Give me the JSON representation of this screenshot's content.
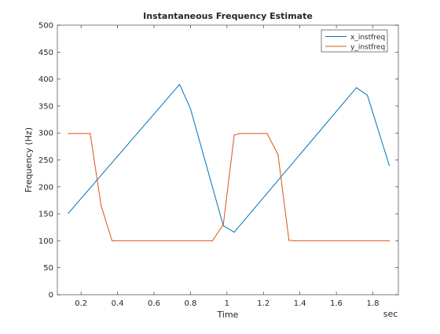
{
  "chart_data": {
    "type": "line",
    "title": "Instantaneous Frequency Estimate",
    "xlabel": "Time",
    "ylabel": "Frequency (Hz)",
    "x_unit_label": "sec",
    "xlim": [
      0.07,
      1.94
    ],
    "ylim": [
      0,
      500
    ],
    "x_ticks": [
      0.2,
      0.4,
      0.6,
      0.8,
      1,
      1.2,
      1.4,
      1.6,
      1.8
    ],
    "x_tick_labels": [
      "0.2",
      "0.4",
      "0.6",
      "0.8",
      "1",
      "1.2",
      "1.4",
      "1.6",
      "1.8"
    ],
    "y_ticks": [
      0,
      50,
      100,
      150,
      200,
      250,
      300,
      350,
      400,
      450,
      500
    ],
    "y_tick_labels": [
      "0",
      "50",
      "100",
      "150",
      "200",
      "250",
      "300",
      "350",
      "400",
      "450",
      "500"
    ],
    "grid": false,
    "legend_position": "top-right",
    "series": [
      {
        "name": "x_instfreq",
        "color": "#0072BD",
        "x": [
          0.13,
          0.74,
          0.8,
          0.98,
          1.04,
          1.71,
          1.77,
          1.89
        ],
        "y": [
          151,
          390,
          345,
          128,
          116,
          384,
          370,
          240
        ]
      },
      {
        "name": "y_instfreq",
        "color": "#D95319",
        "x": [
          0.13,
          0.25,
          0.31,
          0.37,
          0.92,
          0.98,
          1.04,
          1.07,
          1.22,
          1.28,
          1.34,
          1.37,
          1.89
        ],
        "y": [
          299,
          299,
          165,
          100,
          100,
          130,
          296,
          299,
          299,
          260,
          101,
          100,
          100
        ]
      }
    ]
  }
}
